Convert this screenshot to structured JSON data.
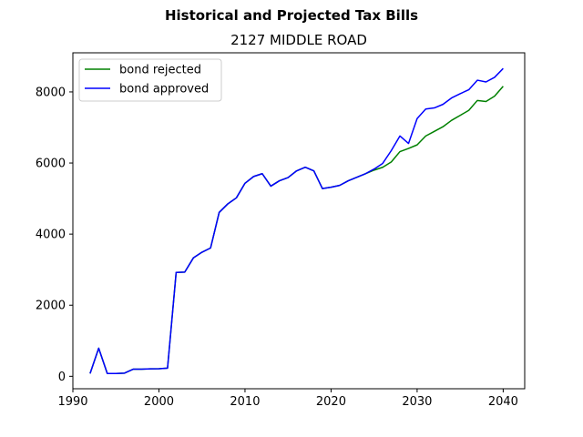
{
  "chart_data": {
    "type": "line",
    "suptitle": "Historical and Projected Tax Bills",
    "title": "2127 MIDDLE ROAD",
    "xlabel": "",
    "ylabel": "",
    "xlim": [
      1990,
      2042.5
    ],
    "ylim": [
      -350,
      9100
    ],
    "xticks": [
      1990,
      2000,
      2010,
      2020,
      2030,
      2040
    ],
    "yticks": [
      0,
      2000,
      4000,
      6000,
      8000
    ],
    "grid": false,
    "legend_position": "upper-left",
    "x": [
      1992,
      1993,
      1994,
      1995,
      1996,
      1997,
      1998,
      1999,
      2000,
      2001,
      2002,
      2003,
      2004,
      2005,
      2006,
      2007,
      2008,
      2009,
      2010,
      2011,
      2012,
      2013,
      2014,
      2015,
      2016,
      2017,
      2018,
      2019,
      2020,
      2021,
      2022,
      2023,
      2024,
      2025,
      2026,
      2027,
      2028,
      2029,
      2030,
      2031,
      2032,
      2033,
      2034,
      2035,
      2036,
      2037,
      2038,
      2039,
      2040
    ],
    "series": [
      {
        "name": "bond rejected",
        "color": "#008000",
        "values": [
          80,
          790,
          80,
          80,
          90,
          200,
          200,
          210,
          215,
          230,
          2920,
          2930,
          3330,
          3490,
          3610,
          4610,
          4850,
          5020,
          5430,
          5620,
          5700,
          5350,
          5500,
          5590,
          5780,
          5880,
          5780,
          5280,
          5320,
          5370,
          5500,
          5600,
          5700,
          5800,
          5880,
          6030,
          6320,
          6410,
          6510,
          6760,
          6890,
          7020,
          7200,
          7340,
          7480,
          7760,
          7730,
          7880,
          8160
        ]
      },
      {
        "name": "bond approved",
        "color": "#0000ff",
        "values": [
          80,
          790,
          80,
          80,
          90,
          200,
          200,
          210,
          215,
          230,
          2920,
          2930,
          3330,
          3490,
          3610,
          4610,
          4850,
          5020,
          5430,
          5620,
          5700,
          5350,
          5500,
          5590,
          5780,
          5880,
          5780,
          5280,
          5320,
          5370,
          5500,
          5600,
          5700,
          5830,
          5990,
          6350,
          6760,
          6550,
          7250,
          7520,
          7550,
          7650,
          7830,
          7950,
          8060,
          8330,
          8280,
          8410,
          8660
        ]
      }
    ]
  }
}
